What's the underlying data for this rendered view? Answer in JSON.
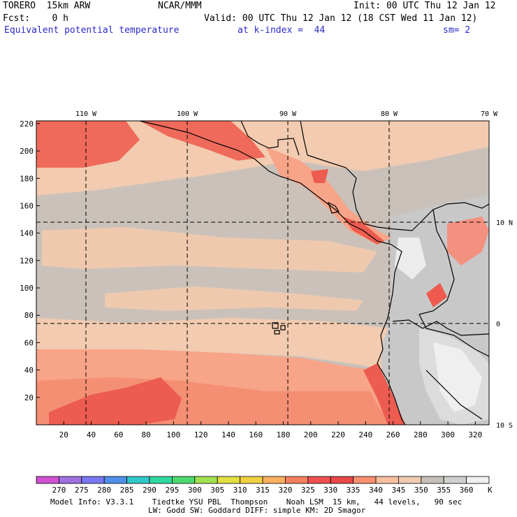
{
  "header": {
    "model": "TORERO  15km ARW",
    "center": "NCAR/MMM",
    "init": "Init: 00 UTC Thu 12 Jan 12",
    "fcst": "Fcst:    0 h",
    "valid": "Valid: 00 UTC Thu 12 Jan 12 (18 CST Wed 11 Jan 12)",
    "field": "Equivalent potential temperature",
    "level": "at k-index =  44",
    "smooth": "sm= 2"
  },
  "map": {
    "x_ticks": [
      "20",
      "40",
      "60",
      "80",
      "100",
      "120",
      "140",
      "160",
      "180",
      "200",
      "220",
      "240",
      "260",
      "280",
      "300",
      "320"
    ],
    "y_ticks": [
      "20",
      "40",
      "60",
      "80",
      "100",
      "120",
      "140",
      "160",
      "180",
      "200",
      "220"
    ],
    "lon_labels": [
      "110 W",
      "100 W",
      "90 W",
      "80 W",
      "70 W"
    ],
    "lat_labels": [
      "10 N",
      "0",
      "10 S"
    ]
  },
  "colorbar": {
    "unit": "K",
    "levels": [
      "270",
      "275",
      "280",
      "285",
      "290",
      "295",
      "300",
      "305",
      "310",
      "315",
      "320",
      "325",
      "330",
      "335",
      "340",
      "345",
      "350",
      "355",
      "360"
    ],
    "colors": [
      "#d050d0",
      "#a070e0",
      "#7878f0",
      "#5090e8",
      "#30c8c8",
      "#30d8a0",
      "#50d870",
      "#a0e050",
      "#e0e040",
      "#f0d040",
      "#f8b060",
      "#f88060",
      "#f05050",
      "#e84848",
      "#f89070",
      "#f8c0a0",
      "#f0cbb0",
      "#c8c0b8",
      "#d0d0d0",
      "#f0f0f0"
    ]
  },
  "footer": {
    "line1": "Model Info: V3.3.1    Tiedtke YSU PBL  Thompson    Noah LSM  15 km,   44 levels,   90 sec",
    "line2": "LW: Godd SW: Goddard DIFF: simple KM: 2D Smagor"
  }
}
